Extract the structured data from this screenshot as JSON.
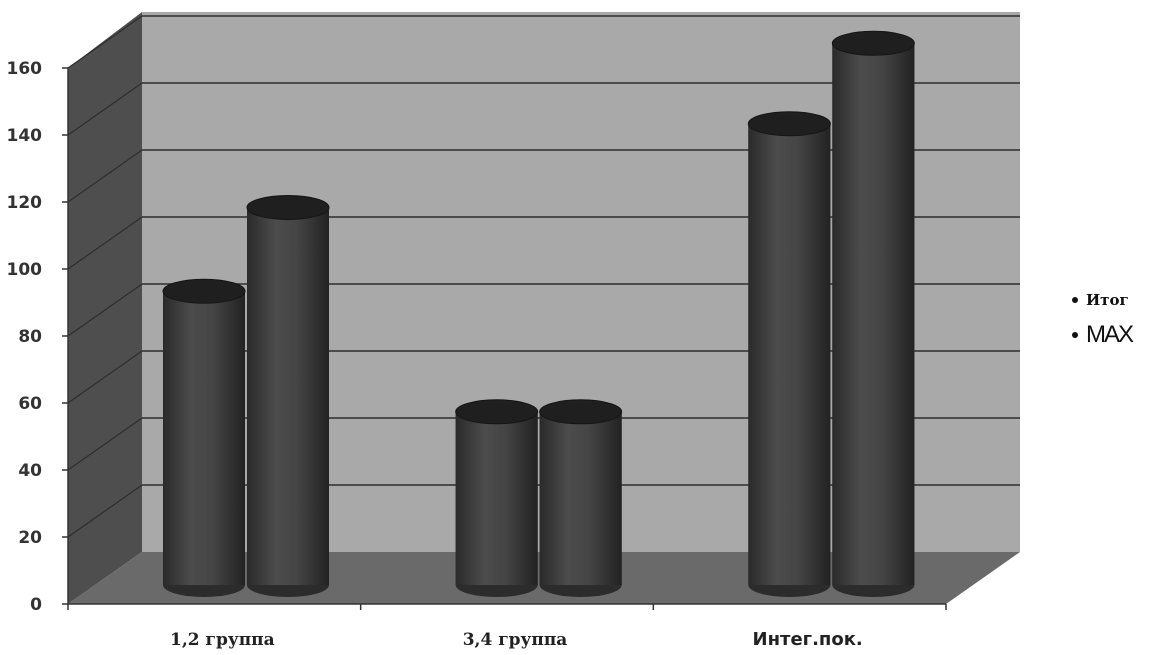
{
  "chart_data": {
    "type": "bar",
    "style": "3d-cylinder",
    "categories": [
      "1,2 группа",
      "3,4 группа",
      "Интег.пок."
    ],
    "series": [
      {
        "name": "Итог",
        "values": [
          88,
          52,
          138
        ],
        "color": "#3a3a3a"
      },
      {
        "name": "MAX",
        "values": [
          113,
          52,
          162
        ],
        "color": "#3a3a3a"
      }
    ],
    "yticks": [
      "0",
      "20",
      "40",
      "60",
      "80",
      "100",
      "120",
      "140",
      "160"
    ],
    "ylim": [
      0,
      170
    ],
    "grid": true,
    "legend": "right",
    "title": "",
    "xlabel": "",
    "ylabel": ""
  }
}
